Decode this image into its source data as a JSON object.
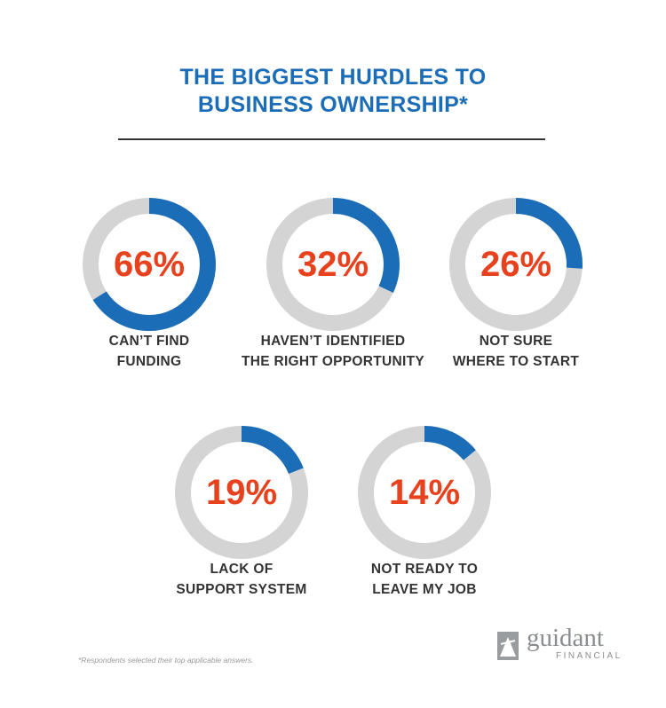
{
  "chart_data": {
    "type": "donut",
    "title": "THE BIGGEST HURDLES TO\nBUSINESS OWNERSHIP*",
    "categories": [
      "CAN’T FIND\nFUNDING",
      "HAVEN’T IDENTIFIED\nTHE RIGHT OPPORTUNITY",
      "NOT SURE\nWHERE TO START",
      "LACK OF\nSUPPORT SYSTEM",
      "NOT READY TO\nLEAVE MY JOB"
    ],
    "values": [
      66,
      32,
      26,
      19,
      14
    ],
    "value_labels": [
      "66%",
      "32%",
      "26%",
      "19%",
      "14%"
    ],
    "color": "#1c6db7",
    "track_color": "#d4d4d4",
    "label_color": "#e8411e",
    "footnote": "*Respondents selected their top applicable answers.",
    "brand": {
      "name": "guidant",
      "sub": "FINANCIAL"
    }
  }
}
